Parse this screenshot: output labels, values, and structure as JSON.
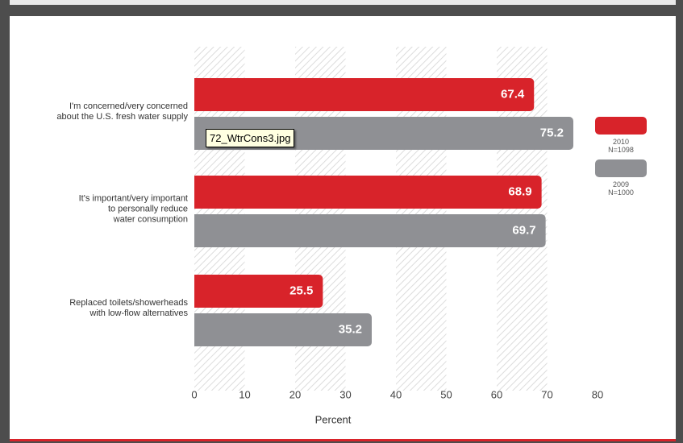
{
  "chart_data": {
    "type": "bar",
    "orientation": "horizontal",
    "categories": [
      "I'm concerned/very concerned\nabout the U.S. fresh water supply",
      "It's important/very important\nto personally reduce\nwater consumption",
      "Replaced toilets/showerheads\nwith low-flow alternatives"
    ],
    "series": [
      {
        "name": "2010\nN=1098",
        "color": "#d8232a",
        "values": [
          67.4,
          68.9,
          25.5
        ]
      },
      {
        "name": "2009\nN=1000",
        "color": "#8f9094",
        "values": [
          75.2,
          69.7,
          35.2
        ]
      }
    ],
    "xlabel": "Percent",
    "xlim": [
      0,
      80
    ],
    "xticks": [
      0,
      10,
      20,
      30,
      40,
      50,
      60,
      70,
      80
    ],
    "grid": true,
    "legend": "right"
  },
  "tooltip": "72_WtrCons3.jpg"
}
